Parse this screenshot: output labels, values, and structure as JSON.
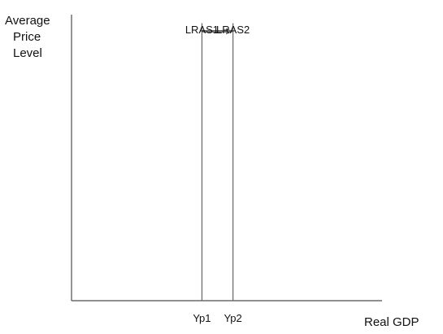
{
  "chart_data": {
    "type": "line",
    "title": "",
    "xlabel": "Real GDP",
    "ylabel_lines": [
      "Average",
      "Price",
      "Level"
    ],
    "xlim": [
      0,
      1
    ],
    "ylim": [
      0,
      1
    ],
    "grid": false,
    "x_ticks": [
      {
        "label": "Yp1",
        "value": 0.42
      },
      {
        "label": "Yp2",
        "value": 0.52
      }
    ],
    "series": [
      {
        "name": "LRAS1",
        "x": [
          0.42,
          0.42
        ],
        "y": [
          0,
          0.97
        ]
      },
      {
        "name": "LRAS2",
        "x": [
          0.52,
          0.52
        ],
        "y": [
          0,
          0.97
        ]
      }
    ],
    "annotations": [
      {
        "type": "arrow",
        "from": [
          0.42,
          0.97
        ],
        "to": [
          0.52,
          0.97
        ],
        "color": "#6f6f6f"
      }
    ],
    "colors": {
      "axis": "#4d4d4d",
      "lines": "#666666",
      "arrow": "#6f6f6f",
      "text": "#111111"
    }
  }
}
